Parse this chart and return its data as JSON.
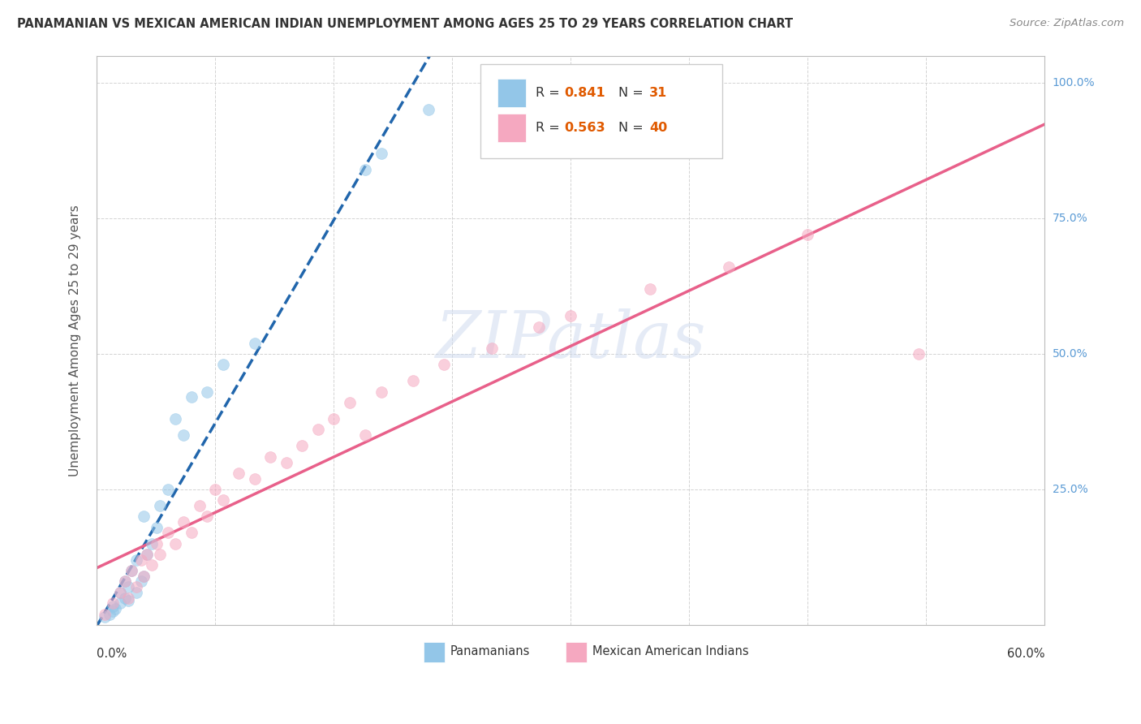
{
  "title": "PANAMANIAN VS MEXICAN AMERICAN INDIAN UNEMPLOYMENT AMONG AGES 25 TO 29 YEARS CORRELATION CHART",
  "source": "Source: ZipAtlas.com",
  "ylabel": "Unemployment Among Ages 25 to 29 years",
  "watermark": "ZIPatlas",
  "blue_color": "#93c6e8",
  "pink_color": "#f5a8c0",
  "blue_line_color": "#2166ac",
  "pink_line_color": "#e8608a",
  "blue_r": 0.841,
  "blue_n": 31,
  "pink_r": 0.563,
  "pink_n": 40,
  "xlim": [
    0.0,
    0.6
  ],
  "ylim": [
    0.0,
    1.05
  ],
  "figsize": [
    14.06,
    8.92
  ],
  "dpi": 100,
  "orange_color": "#e05a00",
  "ytick_vals": [
    0.0,
    0.25,
    0.5,
    0.75,
    1.0
  ],
  "ytick_vals_right": [
    1.0,
    0.75,
    0.5,
    0.25
  ],
  "ytick_labels_right": [
    "100.0%",
    "75.0%",
    "50.0%",
    "25.0%"
  ],
  "right_label_color": "#5b9bd5",
  "bottom_legend_labels": [
    "Panamanians",
    "Mexican American Indians"
  ],
  "blue_scatter_x": [
    0.005,
    0.008,
    0.01,
    0.01,
    0.012,
    0.015,
    0.015,
    0.018,
    0.018,
    0.02,
    0.02,
    0.022,
    0.025,
    0.025,
    0.028,
    0.03,
    0.03,
    0.032,
    0.035,
    0.038,
    0.04,
    0.045,
    0.05,
    0.055,
    0.06,
    0.07,
    0.08,
    0.1,
    0.17,
    0.18,
    0.21
  ],
  "blue_scatter_y": [
    0.015,
    0.02,
    0.025,
    0.035,
    0.03,
    0.04,
    0.06,
    0.05,
    0.08,
    0.045,
    0.07,
    0.1,
    0.06,
    0.12,
    0.08,
    0.09,
    0.2,
    0.13,
    0.15,
    0.18,
    0.22,
    0.25,
    0.38,
    0.35,
    0.42,
    0.43,
    0.48,
    0.52,
    0.84,
    0.87,
    0.95
  ],
  "pink_scatter_x": [
    0.005,
    0.01,
    0.015,
    0.018,
    0.02,
    0.022,
    0.025,
    0.028,
    0.03,
    0.032,
    0.035,
    0.038,
    0.04,
    0.045,
    0.05,
    0.055,
    0.06,
    0.065,
    0.07,
    0.075,
    0.08,
    0.09,
    0.1,
    0.11,
    0.12,
    0.13,
    0.14,
    0.15,
    0.16,
    0.17,
    0.18,
    0.2,
    0.22,
    0.25,
    0.28,
    0.3,
    0.35,
    0.4,
    0.45,
    0.52
  ],
  "pink_scatter_y": [
    0.02,
    0.04,
    0.06,
    0.08,
    0.05,
    0.1,
    0.07,
    0.12,
    0.09,
    0.13,
    0.11,
    0.15,
    0.13,
    0.17,
    0.15,
    0.19,
    0.17,
    0.22,
    0.2,
    0.25,
    0.23,
    0.28,
    0.27,
    0.31,
    0.3,
    0.33,
    0.36,
    0.38,
    0.41,
    0.35,
    0.43,
    0.45,
    0.48,
    0.51,
    0.55,
    0.57,
    0.62,
    0.66,
    0.72,
    0.5
  ]
}
